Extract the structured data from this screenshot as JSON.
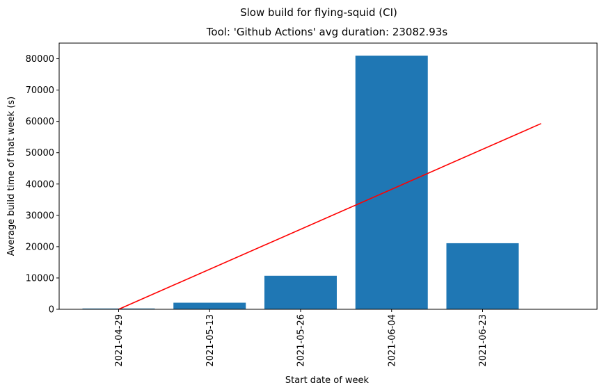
{
  "chart_data": {
    "type": "bar",
    "suptitle": "Slow build for flying-squid (CI)",
    "title": "Tool: 'Github Actions' avg duration: 23082.93s",
    "xlabel": "Start date of week",
    "ylabel": "Average build time of that week (s)",
    "categories": [
      "2021-04-29",
      "2021-05-13",
      "2021-05-26",
      "2021-06-04",
      "2021-06-23"
    ],
    "values": [
      250,
      2100,
      10700,
      81000,
      21100
    ],
    "ylim": [
      0,
      85000
    ],
    "yticks": [
      0,
      10000,
      20000,
      30000,
      40000,
      50000,
      60000,
      70000,
      80000
    ],
    "bar_color": "#1f77b4",
    "trend_line": {
      "color": "#ff0000",
      "points": [
        {
          "x": "2021-04-29",
          "y": 0
        },
        {
          "x": "2021-07-03",
          "y": 59300
        }
      ]
    },
    "grid": false
  }
}
